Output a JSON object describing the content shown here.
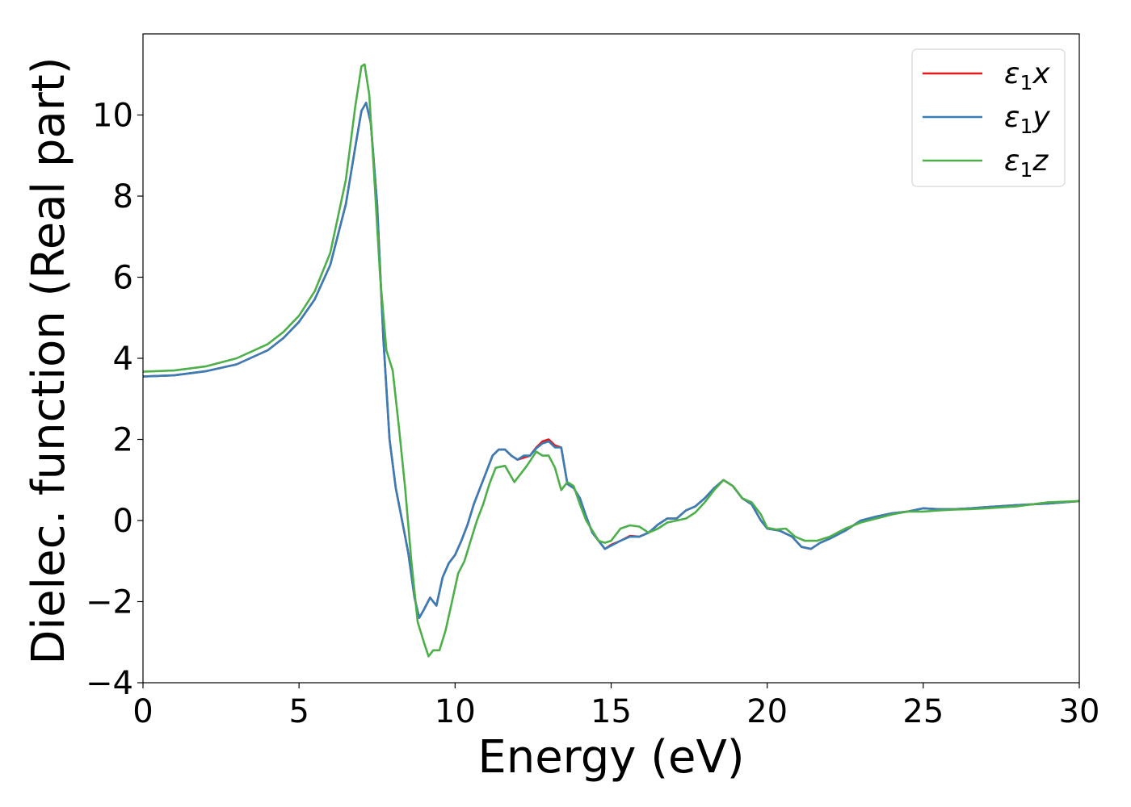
{
  "chart_data": {
    "type": "line",
    "title": "",
    "xlabel": "Energy (eV)",
    "ylabel": "Dielec. function (Real part)",
    "xlim": [
      0,
      30
    ],
    "ylim": [
      -4,
      12
    ],
    "xticks": [
      0,
      5,
      10,
      15,
      20,
      25,
      30
    ],
    "yticks": [
      -4,
      -2,
      0,
      2,
      4,
      6,
      8,
      10
    ],
    "xtick_labels": [
      "0",
      "5",
      "10",
      "15",
      "20",
      "25",
      "30"
    ],
    "ytick_labels": [
      "−4",
      "−2",
      "0",
      "2",
      "4",
      "6",
      "8",
      "10"
    ],
    "grid": false,
    "legend_position": "top-right",
    "series": [
      {
        "name": "ε1x",
        "legend": {
          "symbol": "ε",
          "sub": "1",
          "var": "x"
        },
        "color": "#e41a1c",
        "points": [
          [
            0,
            3.55
          ],
          [
            1,
            3.58
          ],
          [
            2,
            3.68
          ],
          [
            3,
            3.85
          ],
          [
            4,
            4.2
          ],
          [
            4.5,
            4.5
          ],
          [
            5,
            4.9
          ],
          [
            5.5,
            5.45
          ],
          [
            6,
            6.3
          ],
          [
            6.5,
            7.8
          ],
          [
            6.8,
            9.2
          ],
          [
            7.0,
            10.1
          ],
          [
            7.15,
            10.3
          ],
          [
            7.3,
            9.8
          ],
          [
            7.5,
            7.8
          ],
          [
            7.7,
            4.5
          ],
          [
            7.9,
            2.0
          ],
          [
            8.1,
            0.8
          ],
          [
            8.3,
            0.0
          ],
          [
            8.5,
            -0.8
          ],
          [
            8.7,
            -1.9
          ],
          [
            8.85,
            -2.4
          ],
          [
            9.0,
            -2.2
          ],
          [
            9.2,
            -1.9
          ],
          [
            9.4,
            -2.1
          ],
          [
            9.6,
            -1.4
          ],
          [
            9.8,
            -1.05
          ],
          [
            10.0,
            -0.85
          ],
          [
            10.2,
            -0.5
          ],
          [
            10.4,
            -0.1
          ],
          [
            10.6,
            0.4
          ],
          [
            10.8,
            0.8
          ],
          [
            11.0,
            1.2
          ],
          [
            11.2,
            1.6
          ],
          [
            11.4,
            1.75
          ],
          [
            11.6,
            1.75
          ],
          [
            11.8,
            1.6
          ],
          [
            12.0,
            1.5
          ],
          [
            12.2,
            1.55
          ],
          [
            12.4,
            1.6
          ],
          [
            12.6,
            1.8
          ],
          [
            12.8,
            1.95
          ],
          [
            13.0,
            2.0
          ],
          [
            13.2,
            1.85
          ],
          [
            13.4,
            1.8
          ],
          [
            13.6,
            0.9
          ],
          [
            13.8,
            0.8
          ],
          [
            14.0,
            0.55
          ],
          [
            14.2,
            0.1
          ],
          [
            14.4,
            -0.3
          ],
          [
            14.6,
            -0.5
          ],
          [
            14.8,
            -0.7
          ],
          [
            15.0,
            -0.6
          ],
          [
            15.3,
            -0.5
          ],
          [
            15.6,
            -0.38
          ],
          [
            15.9,
            -0.4
          ],
          [
            16.2,
            -0.3
          ],
          [
            16.5,
            -0.1
          ],
          [
            16.8,
            0.05
          ],
          [
            17.1,
            0.05
          ],
          [
            17.4,
            0.25
          ],
          [
            17.7,
            0.35
          ],
          [
            18.0,
            0.55
          ],
          [
            18.3,
            0.8
          ],
          [
            18.6,
            1.0
          ],
          [
            18.9,
            0.85
          ],
          [
            19.2,
            0.55
          ],
          [
            19.5,
            0.4
          ],
          [
            19.8,
            0.0
          ],
          [
            20.0,
            -0.2
          ],
          [
            20.4,
            -0.25
          ],
          [
            20.8,
            -0.4
          ],
          [
            21.1,
            -0.65
          ],
          [
            21.4,
            -0.7
          ],
          [
            21.7,
            -0.55
          ],
          [
            22.0,
            -0.45
          ],
          [
            22.5,
            -0.25
          ],
          [
            23.0,
            0.0
          ],
          [
            23.5,
            0.1
          ],
          [
            24.0,
            0.18
          ],
          [
            24.5,
            0.22
          ],
          [
            25.0,
            0.3
          ],
          [
            25.5,
            0.28
          ],
          [
            26.0,
            0.28
          ],
          [
            26.5,
            0.3
          ],
          [
            27.0,
            0.33
          ],
          [
            28.0,
            0.38
          ],
          [
            29.0,
            0.42
          ],
          [
            30.0,
            0.48
          ]
        ]
      },
      {
        "name": "ε1y",
        "legend": {
          "symbol": "ε",
          "sub": "1",
          "var": "y"
        },
        "color": "#377eb8",
        "points": [
          [
            0,
            3.55
          ],
          [
            1,
            3.58
          ],
          [
            2,
            3.68
          ],
          [
            3,
            3.85
          ],
          [
            4,
            4.2
          ],
          [
            4.5,
            4.5
          ],
          [
            5,
            4.9
          ],
          [
            5.5,
            5.45
          ],
          [
            6,
            6.3
          ],
          [
            6.5,
            7.8
          ],
          [
            6.8,
            9.2
          ],
          [
            7.0,
            10.1
          ],
          [
            7.15,
            10.3
          ],
          [
            7.3,
            9.8
          ],
          [
            7.5,
            7.8
          ],
          [
            7.7,
            4.5
          ],
          [
            7.9,
            2.0
          ],
          [
            8.1,
            0.8
          ],
          [
            8.3,
            0.0
          ],
          [
            8.5,
            -0.8
          ],
          [
            8.7,
            -1.9
          ],
          [
            8.85,
            -2.4
          ],
          [
            9.0,
            -2.2
          ],
          [
            9.2,
            -1.9
          ],
          [
            9.4,
            -2.1
          ],
          [
            9.6,
            -1.4
          ],
          [
            9.8,
            -1.05
          ],
          [
            10.0,
            -0.85
          ],
          [
            10.2,
            -0.5
          ],
          [
            10.4,
            -0.1
          ],
          [
            10.6,
            0.4
          ],
          [
            10.8,
            0.8
          ],
          [
            11.0,
            1.2
          ],
          [
            11.2,
            1.6
          ],
          [
            11.4,
            1.75
          ],
          [
            11.6,
            1.75
          ],
          [
            11.8,
            1.6
          ],
          [
            12.0,
            1.5
          ],
          [
            12.2,
            1.6
          ],
          [
            12.4,
            1.6
          ],
          [
            12.6,
            1.78
          ],
          [
            12.8,
            1.9
          ],
          [
            13.0,
            1.95
          ],
          [
            13.2,
            1.8
          ],
          [
            13.4,
            1.8
          ],
          [
            13.6,
            0.9
          ],
          [
            13.8,
            0.8
          ],
          [
            14.0,
            0.55
          ],
          [
            14.2,
            0.1
          ],
          [
            14.4,
            -0.3
          ],
          [
            14.6,
            -0.5
          ],
          [
            14.8,
            -0.7
          ],
          [
            15.0,
            -0.62
          ],
          [
            15.3,
            -0.5
          ],
          [
            15.6,
            -0.4
          ],
          [
            15.9,
            -0.4
          ],
          [
            16.2,
            -0.3
          ],
          [
            16.5,
            -0.1
          ],
          [
            16.8,
            0.05
          ],
          [
            17.1,
            0.05
          ],
          [
            17.4,
            0.25
          ],
          [
            17.7,
            0.35
          ],
          [
            18.0,
            0.55
          ],
          [
            18.3,
            0.8
          ],
          [
            18.6,
            1.0
          ],
          [
            18.9,
            0.85
          ],
          [
            19.2,
            0.55
          ],
          [
            19.5,
            0.4
          ],
          [
            19.8,
            0.0
          ],
          [
            20.0,
            -0.2
          ],
          [
            20.4,
            -0.25
          ],
          [
            20.8,
            -0.4
          ],
          [
            21.1,
            -0.65
          ],
          [
            21.4,
            -0.7
          ],
          [
            21.7,
            -0.55
          ],
          [
            22.0,
            -0.45
          ],
          [
            22.5,
            -0.25
          ],
          [
            23.0,
            0.0
          ],
          [
            23.5,
            0.1
          ],
          [
            24.0,
            0.18
          ],
          [
            24.5,
            0.22
          ],
          [
            25.0,
            0.3
          ],
          [
            25.5,
            0.28
          ],
          [
            26.0,
            0.28
          ],
          [
            26.5,
            0.3
          ],
          [
            27.0,
            0.33
          ],
          [
            28.0,
            0.38
          ],
          [
            29.0,
            0.42
          ],
          [
            30.0,
            0.48
          ]
        ]
      },
      {
        "name": "ε1z",
        "legend": {
          "symbol": "ε",
          "sub": "1",
          "var": "z"
        },
        "color": "#4daf4a",
        "points": [
          [
            0,
            3.67
          ],
          [
            1,
            3.7
          ],
          [
            2,
            3.8
          ],
          [
            3,
            4.0
          ],
          [
            4,
            4.35
          ],
          [
            4.5,
            4.65
          ],
          [
            5,
            5.05
          ],
          [
            5.5,
            5.65
          ],
          [
            6,
            6.6
          ],
          [
            6.5,
            8.4
          ],
          [
            6.8,
            10.2
          ],
          [
            7.0,
            11.2
          ],
          [
            7.1,
            11.25
          ],
          [
            7.25,
            10.5
          ],
          [
            7.4,
            8.6
          ],
          [
            7.6,
            6.0
          ],
          [
            7.8,
            4.2
          ],
          [
            8.0,
            3.7
          ],
          [
            8.2,
            2.3
          ],
          [
            8.4,
            0.8
          ],
          [
            8.6,
            -1.0
          ],
          [
            8.8,
            -2.5
          ],
          [
            9.0,
            -3.0
          ],
          [
            9.15,
            -3.35
          ],
          [
            9.3,
            -3.2
          ],
          [
            9.5,
            -3.2
          ],
          [
            9.7,
            -2.7
          ],
          [
            9.9,
            -2.0
          ],
          [
            10.1,
            -1.3
          ],
          [
            10.3,
            -1.0
          ],
          [
            10.5,
            -0.5
          ],
          [
            10.7,
            0.0
          ],
          [
            10.9,
            0.4
          ],
          [
            11.1,
            0.9
          ],
          [
            11.3,
            1.3
          ],
          [
            11.6,
            1.35
          ],
          [
            11.9,
            0.95
          ],
          [
            12.1,
            1.15
          ],
          [
            12.3,
            1.35
          ],
          [
            12.6,
            1.7
          ],
          [
            12.8,
            1.6
          ],
          [
            13.0,
            1.6
          ],
          [
            13.2,
            1.3
          ],
          [
            13.4,
            0.75
          ],
          [
            13.6,
            0.95
          ],
          [
            13.8,
            0.85
          ],
          [
            14.0,
            0.4
          ],
          [
            14.2,
            0.0
          ],
          [
            14.4,
            -0.25
          ],
          [
            14.6,
            -0.5
          ],
          [
            14.8,
            -0.55
          ],
          [
            15.0,
            -0.5
          ],
          [
            15.3,
            -0.2
          ],
          [
            15.6,
            -0.12
          ],
          [
            15.9,
            -0.15
          ],
          [
            16.2,
            -0.3
          ],
          [
            16.5,
            -0.2
          ],
          [
            16.8,
            -0.05
          ],
          [
            17.1,
            0.0
          ],
          [
            17.4,
            0.05
          ],
          [
            17.7,
            0.2
          ],
          [
            18.0,
            0.45
          ],
          [
            18.3,
            0.75
          ],
          [
            18.6,
            1.0
          ],
          [
            18.9,
            0.85
          ],
          [
            19.2,
            0.55
          ],
          [
            19.5,
            0.45
          ],
          [
            19.8,
            0.15
          ],
          [
            20.0,
            -0.18
          ],
          [
            20.3,
            -0.22
          ],
          [
            20.6,
            -0.2
          ],
          [
            20.9,
            -0.4
          ],
          [
            21.2,
            -0.5
          ],
          [
            21.6,
            -0.5
          ],
          [
            22.0,
            -0.4
          ],
          [
            22.5,
            -0.2
          ],
          [
            23.0,
            -0.05
          ],
          [
            23.5,
            0.05
          ],
          [
            24.0,
            0.15
          ],
          [
            24.5,
            0.22
          ],
          [
            25.0,
            0.22
          ],
          [
            25.5,
            0.25
          ],
          [
            26.0,
            0.27
          ],
          [
            26.5,
            0.28
          ],
          [
            27.0,
            0.3
          ],
          [
            28.0,
            0.35
          ],
          [
            29.0,
            0.45
          ],
          [
            30.0,
            0.48
          ]
        ]
      }
    ]
  }
}
